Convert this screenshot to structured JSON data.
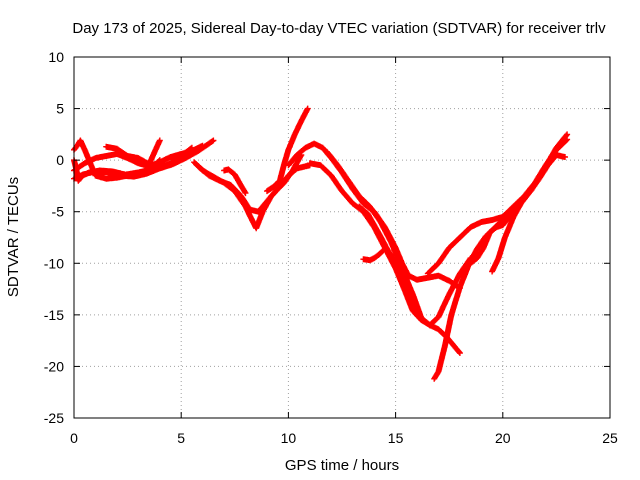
{
  "chart_data": {
    "type": "scatter",
    "title": "Day 173 of 2025, Sidereal Day-to-day VTEC variation (SDTVAR) for receiver trlv",
    "xlabel": "GPS time / hours",
    "ylabel": "SDTVAR / TECUs",
    "xlim": [
      0,
      25
    ],
    "ylim": [
      -25,
      10
    ],
    "xticks": [
      0,
      5,
      10,
      15,
      20,
      25
    ],
    "yticks": [
      10,
      5,
      0,
      -5,
      -10,
      -15,
      -20,
      -25
    ],
    "grid": true,
    "marker": "plus",
    "color": "#ff0000",
    "series": [
      {
        "x": [
          0.0,
          0.5,
          1.0,
          1.5,
          2.0,
          2.5,
          3.0,
          3.5,
          4.0,
          4.5,
          5.0,
          5.5,
          6.0
        ],
        "y": [
          -1.0,
          -0.3,
          0.2,
          0.4,
          0.6,
          0.2,
          -0.3,
          -0.6,
          -0.2,
          0.3,
          0.6,
          0.9,
          1.4
        ]
      },
      {
        "x": [
          0.0,
          0.4,
          1.0,
          1.6,
          2.2,
          2.8,
          3.4,
          4.0,
          4.6,
          5.2,
          5.8,
          6.5
        ],
        "y": [
          -1.8,
          -1.4,
          -1.1,
          -1.2,
          -1.5,
          -1.6,
          -1.3,
          -0.8,
          -0.4,
          0.2,
          0.9,
          1.9
        ]
      },
      {
        "x": [
          0.0,
          0.15,
          0.3,
          0.5,
          0.7,
          1.0,
          1.5,
          2.0,
          2.5,
          3.0,
          3.5,
          4.0,
          4.5,
          5.0,
          5.5
        ],
        "y": [
          1.0,
          1.4,
          1.9,
          1.0,
          0.0,
          -1.5,
          -1.8,
          -1.7,
          -1.5,
          -1.2,
          -1.0,
          -0.7,
          -0.3,
          0.4,
          1.2
        ]
      },
      {
        "x": [
          0.0,
          0.1,
          0.2,
          0.4,
          0.7,
          1.2,
          1.8,
          2.4,
          3.0,
          3.6,
          4.0
        ],
        "y": [
          0.0,
          -0.8,
          -2.0,
          -1.5,
          -1.2,
          -1.0,
          -1.1,
          -1.4,
          -1.2,
          -0.9,
          0.0
        ]
      },
      {
        "x": [
          1.5,
          2.0,
          2.5,
          3.0,
          3.5,
          4.0
        ],
        "y": [
          1.3,
          1.1,
          0.4,
          0.2,
          -0.4,
          1.9
        ]
      },
      {
        "x": [
          5.6,
          6.0,
          6.5,
          7.0,
          7.5,
          8.0,
          8.3,
          8.5,
          8.8,
          9.2,
          9.6,
          10.0,
          10.4,
          10.8,
          11.0
        ],
        "y": [
          -0.2,
          -1.0,
          -1.6,
          -2.2,
          -3.0,
          -4.5,
          -5.8,
          -6.6,
          -5.0,
          -3.5,
          -2.6,
          -1.5,
          -0.8,
          -0.6,
          -0.5
        ]
      },
      {
        "x": [
          5.8,
          6.3,
          6.8,
          7.3,
          7.8,
          8.2,
          8.6,
          9.0,
          9.4,
          9.8,
          10.2,
          10.6
        ],
        "y": [
          -0.6,
          -1.5,
          -2.0,
          -2.4,
          -3.5,
          -4.8,
          -5.0,
          -4.0,
          -3.0,
          -2.2,
          -1.0,
          0.5
        ]
      },
      {
        "x": [
          7.0,
          7.2,
          7.5,
          7.8,
          8.0
        ],
        "y": [
          -1.0,
          -0.9,
          -1.4,
          -2.5,
          -3.2
        ]
      },
      {
        "x": [
          9.0,
          9.3,
          9.6,
          9.8,
          10.0,
          10.3,
          10.6,
          10.9
        ],
        "y": [
          -3.0,
          -2.6,
          -2.0,
          -0.4,
          1.0,
          2.5,
          3.8,
          5.0
        ]
      },
      {
        "x": [
          10.0,
          10.4,
          10.8,
          11.2,
          11.6,
          12.0,
          12.5,
          13.0,
          13.5,
          14.0,
          14.5,
          15.0,
          15.3,
          15.6,
          16.0,
          16.5,
          17.0,
          17.5,
          18.0
        ],
        "y": [
          -0.5,
          0.5,
          1.2,
          1.6,
          1.2,
          0.2,
          -1.2,
          -2.8,
          -4.2,
          -5.0,
          -6.5,
          -8.5,
          -10.0,
          -11.2,
          -11.6,
          -11.4,
          -11.2,
          -11.7,
          -12.4
        ]
      },
      {
        "x": [
          11.0,
          11.5,
          12.0,
          12.5,
          13.0,
          13.5,
          14.0,
          14.5,
          15.0,
          15.4,
          15.8,
          16.2,
          16.6,
          17.0,
          17.4,
          17.8,
          18.0
        ],
        "y": [
          -0.3,
          -0.5,
          -1.5,
          -3.0,
          -4.2,
          -5.0,
          -6.5,
          -8.5,
          -10.5,
          -12.5,
          -14.6,
          -15.5,
          -16.0,
          -16.4,
          -17.2,
          -18.2,
          -18.7
        ]
      },
      {
        "x": [
          11.8,
          12.3,
          12.8,
          13.3,
          13.8,
          14.3,
          14.8,
          15.3,
          15.8,
          16.2,
          16.6,
          17.0,
          17.5,
          18.0,
          18.5
        ],
        "y": [
          0.8,
          -0.5,
          -2.0,
          -3.5,
          -4.5,
          -6.0,
          -8.0,
          -10.5,
          -13.0,
          -15.3,
          -16.0,
          -15.2,
          -13.0,
          -11.0,
          -9.5
        ]
      },
      {
        "x": [
          13.3,
          13.7,
          14.0,
          14.3,
          14.6,
          14.9,
          15.2,
          15.6,
          16.0
        ],
        "y": [
          -4.5,
          -5.2,
          -6.3,
          -7.4,
          -8.6,
          -9.6,
          -10.8,
          -13.0,
          -14.5
        ]
      },
      {
        "x": [
          13.5,
          13.8,
          14.0,
          14.2,
          14.4
        ],
        "y": [
          -9.6,
          -9.7,
          -9.5,
          -9.2,
          -8.8
        ]
      },
      {
        "x": [
          16.8,
          17.0,
          17.3,
          17.6,
          18.0,
          18.4,
          18.8,
          19.2,
          19.6,
          20.0,
          20.5,
          21.0,
          21.5,
          22.0,
          22.5,
          23.0
        ],
        "y": [
          -21.2,
          -20.5,
          -18.0,
          -15.0,
          -12.3,
          -10.2,
          -8.6,
          -7.4,
          -6.6,
          -5.8,
          -5.0,
          -3.8,
          -2.3,
          -0.6,
          1.2,
          2.5
        ]
      },
      {
        "x": [
          16.5,
          17.0,
          17.5,
          18.0,
          18.5,
          19.0,
          19.5,
          20.0,
          20.5,
          21.0,
          21.5,
          22.0,
          22.5,
          23.0
        ],
        "y": [
          -11.0,
          -10.0,
          -8.5,
          -7.5,
          -6.5,
          -6.0,
          -5.8,
          -5.5,
          -4.5,
          -3.5,
          -2.2,
          -0.5,
          1.0,
          2.0
        ]
      },
      {
        "x": [
          18.5,
          18.8,
          19.1,
          19.4,
          19.7,
          20.0,
          20.3,
          20.6
        ],
        "y": [
          -10.0,
          -9.5,
          -8.5,
          -7.0,
          -6.5,
          -6.3,
          -5.5,
          -4.3
        ]
      },
      {
        "x": [
          19.5,
          19.8,
          20.1,
          20.5,
          20.9,
          21.3,
          21.7,
          22.1,
          22.5,
          22.9
        ],
        "y": [
          -10.8,
          -9.5,
          -7.5,
          -5.5,
          -4.0,
          -3.0,
          -1.8,
          -0.5,
          0.5,
          0.3
        ]
      }
    ]
  }
}
